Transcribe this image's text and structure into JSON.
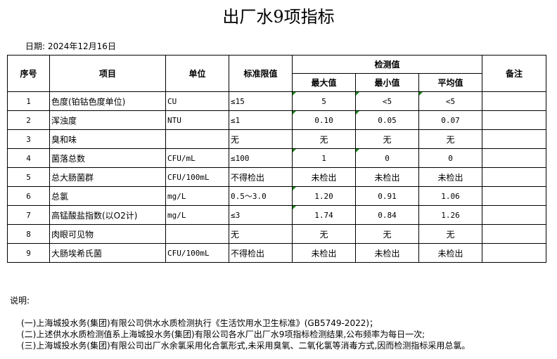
{
  "title": "出厂水9项指标",
  "date": "日期: 2024年12月16日",
  "headers": {
    "no": "序号",
    "item": "项目",
    "unit": "单位",
    "limit": "标准限值",
    "measured": "检测值",
    "max": "最大值",
    "min": "最小值",
    "avg": "平均值",
    "remark": "备注"
  },
  "rows": [
    {
      "no": "1",
      "item": "色度(铂钴色度单位)",
      "unit": "CU",
      "limit": "≤15",
      "max": "5",
      "min": "<5",
      "avg": "<5"
    },
    {
      "no": "2",
      "item": "浑浊度",
      "unit": "NTU",
      "limit": "≤1",
      "max": "0.10",
      "min": "0.05",
      "avg": "0.07"
    },
    {
      "no": "3",
      "item": "臭和味",
      "unit": "",
      "limit": "无",
      "max": "无",
      "min": "无",
      "avg": "无"
    },
    {
      "no": "4",
      "item": "菌落总数",
      "unit": "CFU/mL",
      "limit": "≤100",
      "max": "1",
      "min": "0",
      "avg": "0"
    },
    {
      "no": "5",
      "item": "总大肠菌群",
      "unit": "CFU/100mL",
      "limit": "不得检出",
      "max": "未检出",
      "min": "未检出",
      "avg": "未检出"
    },
    {
      "no": "6",
      "item": "总氯",
      "unit": "mg/L",
      "limit": "0.5～3.0",
      "max": "1.20",
      "min": "0.91",
      "avg": "1.06"
    },
    {
      "no": "7",
      "item": "高锰酸盐指数(以O2计)",
      "unit": "mg/L",
      "limit": "≤3",
      "max": "1.74",
      "min": "0.84",
      "avg": "1.26"
    },
    {
      "no": "8",
      "item": "肉眼可见物",
      "unit": "",
      "limit": "无",
      "max": "无",
      "min": "无",
      "avg": "无"
    },
    {
      "no": "9",
      "item": "大肠埃希氏菌",
      "unit": "CFU/100mL",
      "limit": "不得检出",
      "max": "未检出",
      "min": "未检出",
      "avg": "未检出"
    }
  ],
  "notes": {
    "label": "说明:",
    "items": [
      "(一)上海城投水务(集团)有限公司供水水质检测执行《生活饮用水卫生标准》(GB5749-2022)；",
      "(二)上述供水水质检测值系上海城投水务(集团)有限公司各水厂出厂水9项指标检测结果,公布频率为每日一次;",
      "(三)上海城投水务(集团)有限公司出厂水余氯采用化合氯形式,未采用臭氧、二氧化氯等消毒方式,因而检测指标采用总氯。"
    ]
  }
}
